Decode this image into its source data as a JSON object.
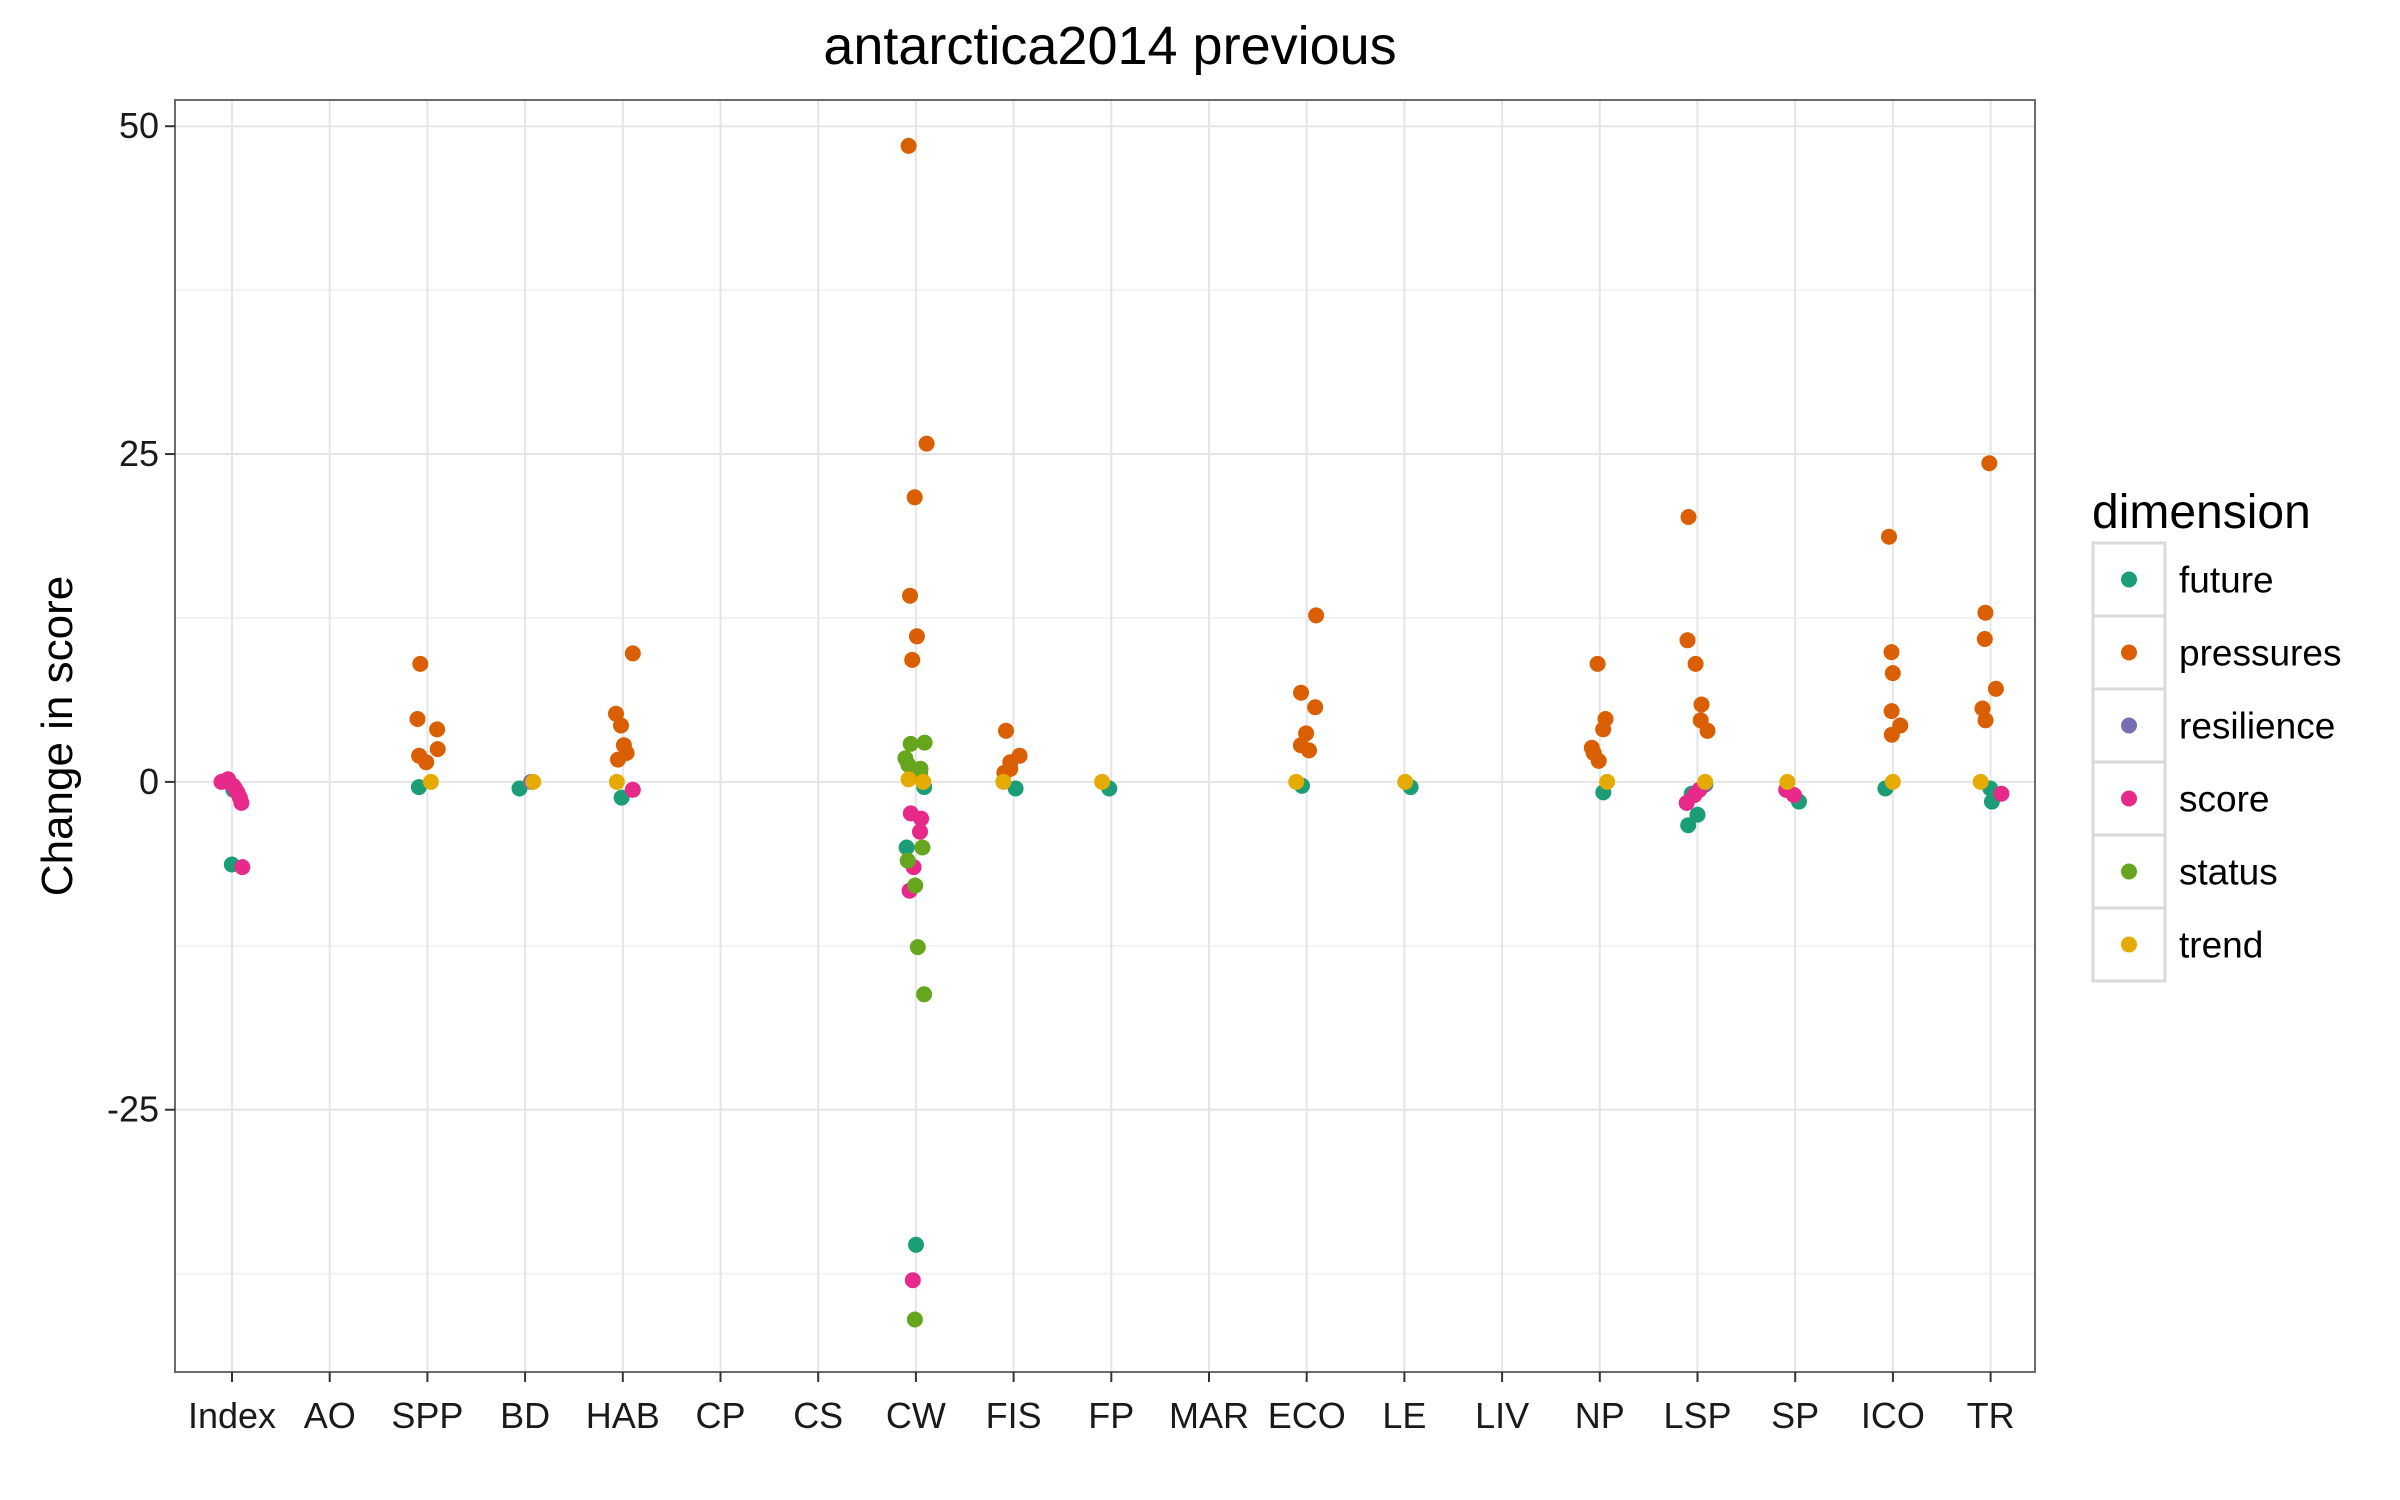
{
  "chart_data": {
    "type": "scatter",
    "title": "antarctica2014 previous",
    "xlabel": "",
    "ylabel": "Change in score",
    "ylim": [
      -45,
      52
    ],
    "yticks": [
      -25,
      0,
      25,
      50
    ],
    "grid": true,
    "legend_position": "right",
    "legend_title": "dimension",
    "categories": [
      "Index",
      "AO",
      "SPP",
      "BD",
      "HAB",
      "CP",
      "CS",
      "CW",
      "FIS",
      "FP",
      "MAR",
      "ECO",
      "LE",
      "LIV",
      "NP",
      "LSP",
      "SP",
      "ICO",
      "TR"
    ],
    "series": [
      {
        "name": "future",
        "color": "#1b9e77",
        "points": [
          {
            "x": "Index",
            "y": -6.3
          },
          {
            "x": "Index",
            "y": -0.6
          },
          {
            "x": "SPP",
            "y": -0.4
          },
          {
            "x": "BD",
            "y": -0.5
          },
          {
            "x": "HAB",
            "y": -1.2
          },
          {
            "x": "CW",
            "y": -35.3
          },
          {
            "x": "CW",
            "y": -5.0
          },
          {
            "x": "CW",
            "y": -0.4
          },
          {
            "x": "FIS",
            "y": -0.5
          },
          {
            "x": "FP",
            "y": -0.5
          },
          {
            "x": "ECO",
            "y": -0.3
          },
          {
            "x": "LE",
            "y": -0.4
          },
          {
            "x": "NP",
            "y": -0.8
          },
          {
            "x": "LSP",
            "y": -3.3
          },
          {
            "x": "LSP",
            "y": -2.5
          },
          {
            "x": "LSP",
            "y": -0.9
          },
          {
            "x": "SP",
            "y": -1.5
          },
          {
            "x": "ICO",
            "y": -0.5
          },
          {
            "x": "TR",
            "y": -1.5
          },
          {
            "x": "TR",
            "y": -0.5
          }
        ]
      },
      {
        "name": "pressures",
        "color": "#d95f02",
        "points": [
          {
            "x": "SPP",
            "y": 9.0
          },
          {
            "x": "SPP",
            "y": 4.8
          },
          {
            "x": "SPP",
            "y": 4.0
          },
          {
            "x": "SPP",
            "y": 2.5
          },
          {
            "x": "SPP",
            "y": 2.0
          },
          {
            "x": "SPP",
            "y": 1.5
          },
          {
            "x": "HAB",
            "y": 9.8
          },
          {
            "x": "HAB",
            "y": 5.2
          },
          {
            "x": "HAB",
            "y": 4.3
          },
          {
            "x": "HAB",
            "y": 2.8
          },
          {
            "x": "HAB",
            "y": 2.2
          },
          {
            "x": "HAB",
            "y": 1.7
          },
          {
            "x": "CW",
            "y": 48.5
          },
          {
            "x": "CW",
            "y": 25.8
          },
          {
            "x": "CW",
            "y": 21.7
          },
          {
            "x": "CW",
            "y": 14.2
          },
          {
            "x": "CW",
            "y": 11.1
          },
          {
            "x": "CW",
            "y": 9.3
          },
          {
            "x": "FIS",
            "y": 3.9
          },
          {
            "x": "FIS",
            "y": 2.0
          },
          {
            "x": "FIS",
            "y": 1.5
          },
          {
            "x": "FIS",
            "y": 1.0
          },
          {
            "x": "FIS",
            "y": 0.7
          },
          {
            "x": "ECO",
            "y": 12.7
          },
          {
            "x": "ECO",
            "y": 6.8
          },
          {
            "x": "ECO",
            "y": 5.7
          },
          {
            "x": "ECO",
            "y": 3.7
          },
          {
            "x": "ECO",
            "y": 2.8
          },
          {
            "x": "ECO",
            "y": 2.4
          },
          {
            "x": "NP",
            "y": 9.0
          },
          {
            "x": "NP",
            "y": 4.8
          },
          {
            "x": "NP",
            "y": 4.0
          },
          {
            "x": "NP",
            "y": 2.6
          },
          {
            "x": "NP",
            "y": 2.2
          },
          {
            "x": "NP",
            "y": 1.6
          },
          {
            "x": "LSP",
            "y": 20.2
          },
          {
            "x": "LSP",
            "y": 10.8
          },
          {
            "x": "LSP",
            "y": 9.0
          },
          {
            "x": "LSP",
            "y": 5.9
          },
          {
            "x": "LSP",
            "y": 4.7
          },
          {
            "x": "LSP",
            "y": 3.9
          },
          {
            "x": "ICO",
            "y": 18.7
          },
          {
            "x": "ICO",
            "y": 9.9
          },
          {
            "x": "ICO",
            "y": 8.3
          },
          {
            "x": "ICO",
            "y": 5.4
          },
          {
            "x": "ICO",
            "y": 4.3
          },
          {
            "x": "ICO",
            "y": 3.6
          },
          {
            "x": "TR",
            "y": 24.3
          },
          {
            "x": "TR",
            "y": 12.9
          },
          {
            "x": "TR",
            "y": 10.9
          },
          {
            "x": "TR",
            "y": 7.1
          },
          {
            "x": "TR",
            "y": 5.6
          },
          {
            "x": "TR",
            "y": 4.7
          }
        ]
      },
      {
        "name": "resilience",
        "color": "#7570b3",
        "points": [
          {
            "x": "BD",
            "y": 0.0
          },
          {
            "x": "LSP",
            "y": -0.2
          }
        ]
      },
      {
        "name": "score",
        "color": "#e7298a",
        "points": [
          {
            "x": "Index",
            "y": -6.5
          },
          {
            "x": "Index",
            "y": -1.6
          },
          {
            "x": "Index",
            "y": -1.2
          },
          {
            "x": "Index",
            "y": -0.8
          },
          {
            "x": "Index",
            "y": -0.5
          },
          {
            "x": "Index",
            "y": -0.3
          },
          {
            "x": "Index",
            "y": 0.0
          },
          {
            "x": "Index",
            "y": 0.2
          },
          {
            "x": "CW",
            "y": -38.0
          },
          {
            "x": "CW",
            "y": -8.3
          },
          {
            "x": "CW",
            "y": -6.5
          },
          {
            "x": "CW",
            "y": -3.8
          },
          {
            "x": "CW",
            "y": -2.8
          },
          {
            "x": "CW",
            "y": -2.4
          },
          {
            "x": "HAB",
            "y": -0.6
          },
          {
            "x": "LSP",
            "y": -1.6
          },
          {
            "x": "LSP",
            "y": -1.0
          },
          {
            "x": "LSP",
            "y": -0.6
          },
          {
            "x": "SP",
            "y": -1.0
          },
          {
            "x": "SP",
            "y": -0.6
          },
          {
            "x": "TR",
            "y": -0.9
          }
        ]
      },
      {
        "name": "status",
        "color": "#66a61e",
        "points": [
          {
            "x": "CW",
            "y": -41.0
          },
          {
            "x": "CW",
            "y": -16.2
          },
          {
            "x": "CW",
            "y": -12.6
          },
          {
            "x": "CW",
            "y": -7.9
          },
          {
            "x": "CW",
            "y": -6.0
          },
          {
            "x": "CW",
            "y": -5.0
          },
          {
            "x": "CW",
            "y": 3.0
          },
          {
            "x": "CW",
            "y": 2.9
          },
          {
            "x": "CW",
            "y": 1.8
          },
          {
            "x": "CW",
            "y": 1.3
          },
          {
            "x": "CW",
            "y": 1.0
          },
          {
            "x": "CW",
            "y": 0.6
          }
        ]
      },
      {
        "name": "trend",
        "color": "#e6ab02",
        "points": [
          {
            "x": "SPP",
            "y": 0.0
          },
          {
            "x": "BD",
            "y": 0.0
          },
          {
            "x": "HAB",
            "y": 0.0
          },
          {
            "x": "CW",
            "y": 0.0
          },
          {
            "x": "CW",
            "y": 0.2
          },
          {
            "x": "FIS",
            "y": 0.0
          },
          {
            "x": "FP",
            "y": 0.0
          },
          {
            "x": "ECO",
            "y": 0.0
          },
          {
            "x": "LE",
            "y": 0.0
          },
          {
            "x": "NP",
            "y": 0.0
          },
          {
            "x": "LSP",
            "y": 0.0
          },
          {
            "x": "SP",
            "y": 0.0
          },
          {
            "x": "ICO",
            "y": 0.0
          },
          {
            "x": "TR",
            "y": 0.0
          }
        ]
      }
    ]
  }
}
